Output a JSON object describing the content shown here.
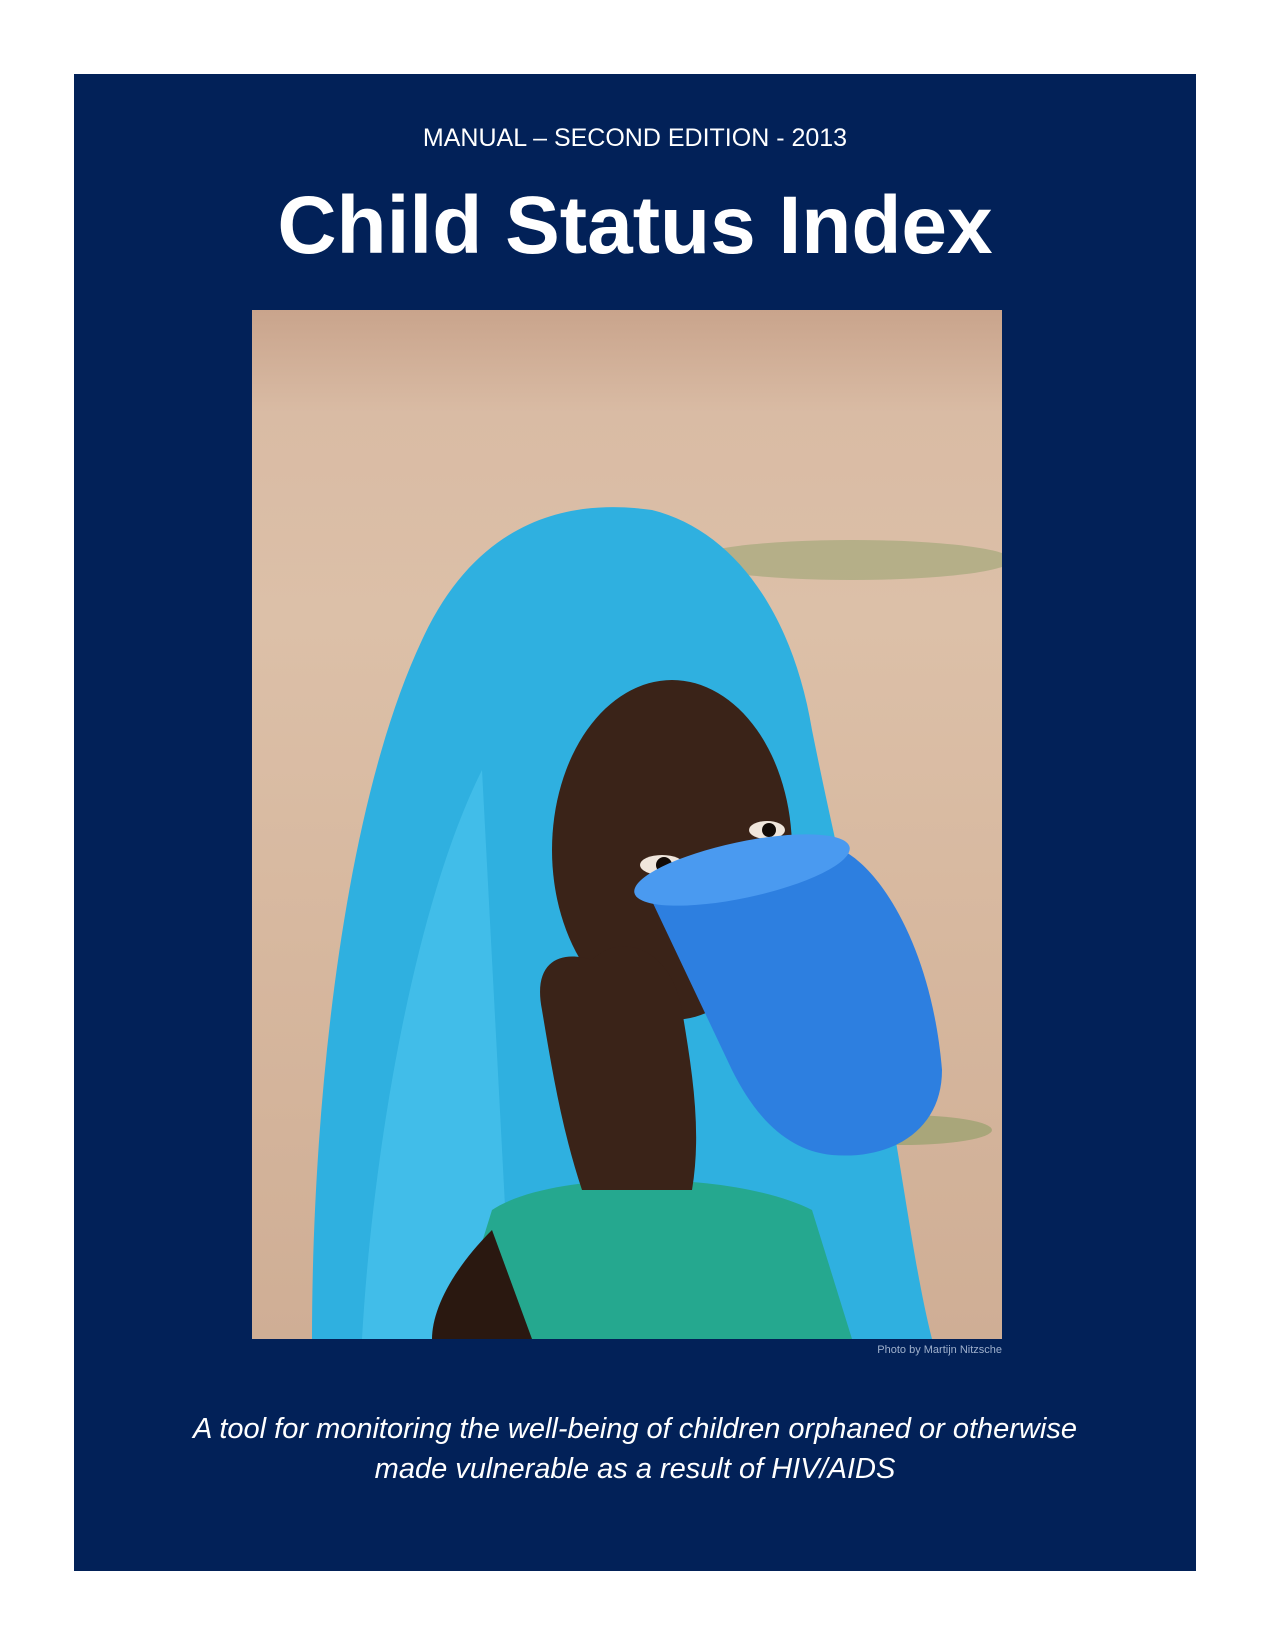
{
  "cover": {
    "edition": "MANUAL – SECOND EDITION - 2013",
    "title": "Child Status Index",
    "photo_alt": "Child in a blue headscarf drinking from a blue cup",
    "photo_credit": "Photo by Martijn Nitzsche",
    "tagline_line1": "A tool for monitoring the well-being of children orphaned or otherwise",
    "tagline_line2": "made vulnerable as a result of HIV/AIDS",
    "colors": {
      "background": "#022158",
      "text": "#ffffff"
    }
  }
}
